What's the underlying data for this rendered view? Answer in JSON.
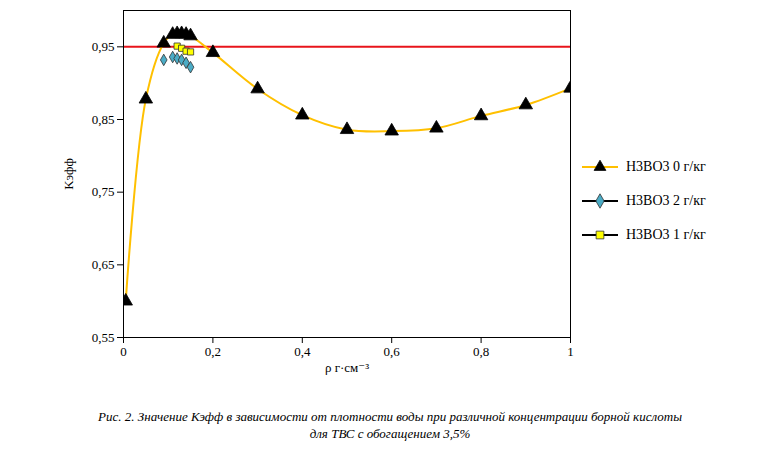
{
  "chart_data": {
    "type": "line",
    "caption": "Рис. 2. Значение Кэфф в зависимости от плотности воды при различной концентрации борной кислоты для ТВС с обогащением 3,5%",
    "xlabel": "ρ г·см⁻³",
    "ylabel": "Kэфф",
    "xlim": [
      0,
      1
    ],
    "xticks": [
      0,
      {
        "value": 0.2,
        "label": "0,2"
      },
      {
        "value": 0.4,
        "label": "0,4"
      },
      {
        "value": 0.6,
        "label": "0,6"
      },
      {
        "value": 0.8,
        "label": "0,8"
      },
      1
    ],
    "ylim": [
      0.55,
      1.0
    ],
    "yticks": [
      {
        "value": 0.55,
        "label": "0,55"
      },
      {
        "value": 0.65,
        "label": "0,65"
      },
      {
        "value": 0.75,
        "label": "0,75"
      },
      {
        "value": 0.85,
        "label": "0,85"
      },
      {
        "value": 0.95,
        "label": "0,95"
      }
    ],
    "grid": false,
    "legend": "right",
    "hlines": [
      {
        "value": 0.95,
        "color": "#e8141b"
      }
    ],
    "series": [
      {
        "name": "H3BO3 0 г/кг",
        "color": "#ffc000",
        "marker": "triangle",
        "line_style": "solid",
        "x": [
          0.005,
          0.05,
          0.09,
          0.11,
          0.12,
          0.13,
          0.14,
          0.15,
          0.2,
          0.3,
          0.4,
          0.5,
          0.6,
          0.7,
          0.8,
          0.9,
          1.0
        ],
        "values": [
          0.6,
          0.878,
          0.955,
          0.967,
          0.968,
          0.968,
          0.967,
          0.965,
          0.942,
          0.892,
          0.856,
          0.836,
          0.834,
          0.838,
          0.855,
          0.87,
          0.893
        ]
      },
      {
        "name": "H3BO3 2 г/кг",
        "color": "#4bacc6",
        "marker": "diamond",
        "line_style": "none",
        "x": [
          0.09,
          0.11,
          0.12,
          0.13,
          0.14,
          0.15
        ],
        "values": [
          0.932,
          0.936,
          0.934,
          0.932,
          0.928,
          0.922
        ]
      },
      {
        "name": "H3BO3 1 г/кг",
        "color": "#ffff00",
        "marker": "square",
        "line_style": "none",
        "x": [
          0.12,
          0.13,
          0.14,
          0.15
        ],
        "values": [
          0.951,
          0.948,
          0.944,
          0.943
        ]
      }
    ]
  }
}
